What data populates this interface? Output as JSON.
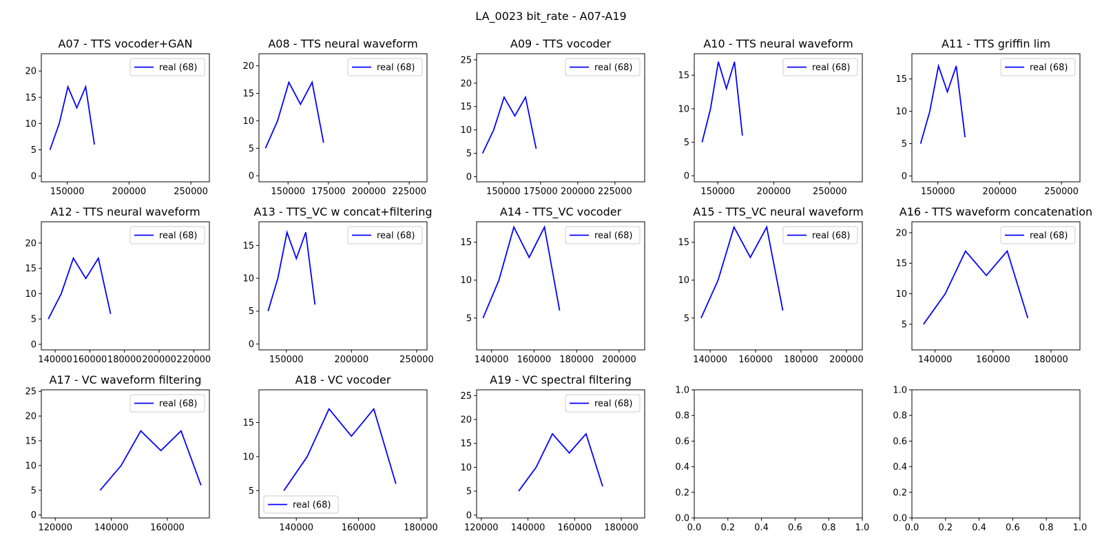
{
  "figure_title": "LA_0023 bit_rate - A07-A19",
  "chart_data": [
    {
      "type": "line",
      "title": "A07 - TTS vocoder+GAN",
      "x": [
        136000,
        143500,
        150500,
        157700,
        164900,
        172000
      ],
      "y": [
        5,
        10,
        17,
        13,
        17,
        6
      ],
      "series": [
        {
          "name": "real (68)",
          "color": "#0000ff"
        }
      ],
      "xlim": [
        129000,
        265000
      ],
      "ylim": [
        -1.1,
        23.3
      ],
      "xticks": [
        150000,
        200000,
        250000
      ],
      "xtick_labels": [
        "150000",
        "200000",
        "250000"
      ],
      "yticks": [
        0,
        5,
        10,
        15,
        20
      ],
      "ytick_labels": [
        "0",
        "5",
        "10",
        "15",
        "20"
      ],
      "legend": "upper right"
    },
    {
      "type": "line",
      "title": "A08 - TTS neural waveform",
      "x": [
        136000,
        143500,
        150500,
        157700,
        164900,
        172000
      ],
      "y": [
        5,
        10,
        17,
        13,
        17,
        6
      ],
      "series": [
        {
          "name": "real (68)",
          "color": "#0000ff"
        }
      ],
      "xlim": [
        132000,
        236000
      ],
      "ylim": [
        -1.1,
        22.2
      ],
      "xticks": [
        150000,
        175000,
        200000,
        225000
      ],
      "xtick_labels": [
        "150000",
        "175000",
        "200000",
        "225000"
      ],
      "yticks": [
        0,
        5,
        10,
        15,
        20
      ],
      "ytick_labels": [
        "0",
        "5",
        "10",
        "15",
        "20"
      ],
      "legend": "upper right"
    },
    {
      "type": "line",
      "title": "A09 - TTS vocoder",
      "x": [
        136000,
        143500,
        150500,
        157700,
        164900,
        172000
      ],
      "y": [
        5,
        10,
        17,
        13,
        17,
        6
      ],
      "series": [
        {
          "name": "real (68)",
          "color": "#0000ff"
        }
      ],
      "xlim": [
        132000,
        245000
      ],
      "ylim": [
        -1.1,
        26.3
      ],
      "xticks": [
        150000,
        175000,
        200000,
        225000
      ],
      "xtick_labels": [
        "150000",
        "175000",
        "200000",
        "225000"
      ],
      "yticks": [
        0,
        5,
        10,
        15,
        20,
        25
      ],
      "ytick_labels": [
        "0",
        "5",
        "10",
        "15",
        "20",
        "25"
      ],
      "legend": "upper right"
    },
    {
      "type": "line",
      "title": "A10 - TTS neural waveform",
      "x": [
        136000,
        143500,
        150500,
        157700,
        164900,
        172000
      ],
      "y": [
        5,
        10,
        17,
        13,
        17,
        6
      ],
      "series": [
        {
          "name": "real (68)",
          "color": "#0000ff"
        }
      ],
      "xlim": [
        129000,
        279000
      ],
      "ylim": [
        -0.9,
        18.2
      ],
      "xticks": [
        150000,
        200000,
        250000
      ],
      "xtick_labels": [
        "150000",
        "200000",
        "250000"
      ],
      "yticks": [
        0,
        5,
        10,
        15
      ],
      "ytick_labels": [
        "0",
        "5",
        "10",
        "15"
      ],
      "legend": "upper right"
    },
    {
      "type": "line",
      "title": "A11 - TTS griffin lim",
      "x": [
        136000,
        143500,
        150500,
        157700,
        164900,
        172000
      ],
      "y": [
        5,
        10,
        17,
        13,
        17,
        6
      ],
      "series": [
        {
          "name": "real (68)",
          "color": "#0000ff"
        }
      ],
      "xlim": [
        129000,
        265000
      ],
      "ylim": [
        -0.9,
        18.9
      ],
      "xticks": [
        150000,
        200000,
        250000
      ],
      "xtick_labels": [
        "150000",
        "200000",
        "250000"
      ],
      "yticks": [
        0,
        5,
        10,
        15
      ],
      "ytick_labels": [
        "0",
        "5",
        "10",
        "15"
      ],
      "legend": "upper right"
    },
    {
      "type": "line",
      "title": "A12 - TTS neural waveform",
      "x": [
        136000,
        143500,
        150500,
        157700,
        164900,
        172000
      ],
      "y": [
        5,
        10,
        17,
        13,
        17,
        6
      ],
      "series": [
        {
          "name": "real (68)",
          "color": "#0000ff"
        }
      ],
      "xlim": [
        132000,
        229000
      ],
      "ylim": [
        -1.1,
        24.2
      ],
      "xticks": [
        140000,
        160000,
        180000,
        200000,
        220000
      ],
      "xtick_labels": [
        "140000",
        "160000",
        "180000",
        "200000",
        "220000"
      ],
      "yticks": [
        0,
        5,
        10,
        15,
        20
      ],
      "ytick_labels": [
        "0",
        "5",
        "10",
        "15",
        "20"
      ],
      "legend": "upper right"
    },
    {
      "type": "line",
      "title": "A13 - TTS_VC w concat+filtering",
      "x": [
        136000,
        143500,
        150500,
        157700,
        164900,
        172000
      ],
      "y": [
        5,
        10,
        17,
        13,
        17,
        6
      ],
      "series": [
        {
          "name": "real (68)",
          "color": "#0000ff"
        }
      ],
      "xlim": [
        129000,
        258000
      ],
      "ylim": [
        -0.9,
        18.6
      ],
      "xticks": [
        150000,
        200000,
        250000
      ],
      "xtick_labels": [
        "150000",
        "200000",
        "250000"
      ],
      "yticks": [
        0,
        5,
        10,
        15
      ],
      "ytick_labels": [
        "0",
        "5",
        "10",
        "15"
      ],
      "legend": "upper right"
    },
    {
      "type": "line",
      "title": "A14 - TTS_VC vocoder",
      "x": [
        136000,
        143500,
        150500,
        157700,
        164900,
        172000
      ],
      "y": [
        5,
        10,
        17,
        13,
        17,
        6
      ],
      "series": [
        {
          "name": "real (68)",
          "color": "#0000ff"
        }
      ],
      "xlim": [
        133000,
        212000
      ],
      "ylim": [
        0.8,
        17.7
      ],
      "xticks": [
        140000,
        160000,
        180000,
        200000
      ],
      "xtick_labels": [
        "140000",
        "160000",
        "180000",
        "200000"
      ],
      "yticks": [
        5,
        10,
        15
      ],
      "ytick_labels": [
        "5",
        "10",
        "15"
      ],
      "legend": "upper right"
    },
    {
      "type": "line",
      "title": "A15 - TTS_VC neural waveform",
      "x": [
        136000,
        143500,
        150500,
        157700,
        164900,
        172000
      ],
      "y": [
        5,
        10,
        17,
        13,
        17,
        6
      ],
      "series": [
        {
          "name": "real (68)",
          "color": "#0000ff"
        }
      ],
      "xlim": [
        133000,
        207000
      ],
      "ylim": [
        0.8,
        17.7
      ],
      "xticks": [
        140000,
        160000,
        180000,
        200000
      ],
      "xtick_labels": [
        "140000",
        "160000",
        "180000",
        "200000"
      ],
      "yticks": [
        5,
        10,
        15
      ],
      "ytick_labels": [
        "5",
        "10",
        "15"
      ],
      "legend": "upper right"
    },
    {
      "type": "line",
      "title": "A16 - TTS waveform concatenation",
      "x": [
        136000,
        143500,
        150500,
        157700,
        164900,
        172000
      ],
      "y": [
        5,
        10,
        17,
        13,
        17,
        6
      ],
      "series": [
        {
          "name": "real (68)",
          "color": "#0000ff"
        }
      ],
      "xlim": [
        132000,
        190000
      ],
      "ylim": [
        0.8,
        21.8
      ],
      "xticks": [
        140000,
        160000,
        180000
      ],
      "xtick_labels": [
        "140000",
        "160000",
        "180000"
      ],
      "yticks": [
        5,
        10,
        15,
        20
      ],
      "ytick_labels": [
        "5",
        "10",
        "15",
        "20"
      ],
      "legend": "upper right"
    },
    {
      "type": "line",
      "title": "A17 - VC waveform filtering",
      "x": [
        136000,
        143500,
        150500,
        157700,
        164900,
        172000
      ],
      "y": [
        5,
        10,
        17,
        13,
        17,
        6
      ],
      "series": [
        {
          "name": "real (68)",
          "color": "#0000ff"
        }
      ],
      "xlim": [
        115000,
        175000
      ],
      "ylim": [
        -0.6,
        25.3
      ],
      "xticks": [
        120000,
        140000,
        160000
      ],
      "xtick_labels": [
        "120000",
        "140000",
        "160000"
      ],
      "yticks": [
        0,
        5,
        10,
        15,
        20,
        25
      ],
      "ytick_labels": [
        "0",
        "5",
        "10",
        "15",
        "20",
        "25"
      ],
      "legend": "upper right"
    },
    {
      "type": "line",
      "title": "A18 - VC vocoder",
      "x": [
        136000,
        143500,
        150500,
        157700,
        164900,
        172000
      ],
      "y": [
        5,
        10,
        17,
        13,
        17,
        6
      ],
      "series": [
        {
          "name": "real (68)",
          "color": "#0000ff"
        }
      ],
      "xlim": [
        128000,
        182000
      ],
      "ylim": [
        1.0,
        19.8
      ],
      "xticks": [
        140000,
        160000,
        180000
      ],
      "xtick_labels": [
        "140000",
        "160000",
        "180000"
      ],
      "yticks": [
        5,
        10,
        15
      ],
      "ytick_labels": [
        "5",
        "10",
        "15"
      ],
      "legend": "lower left"
    },
    {
      "type": "line",
      "title": "A19 - VC spectral filtering",
      "x": [
        136000,
        143500,
        150500,
        157700,
        164900,
        172000
      ],
      "y": [
        5,
        10,
        17,
        13,
        17,
        6
      ],
      "series": [
        {
          "name": "real (68)",
          "color": "#0000ff"
        }
      ],
      "xlim": [
        118000,
        190000
      ],
      "ylim": [
        -0.6,
        26.2
      ],
      "xticks": [
        120000,
        140000,
        160000,
        180000
      ],
      "xtick_labels": [
        "120000",
        "140000",
        "160000",
        "180000"
      ],
      "yticks": [
        0,
        5,
        10,
        15,
        20,
        25
      ],
      "ytick_labels": [
        "0",
        "5",
        "10",
        "15",
        "20",
        "25"
      ],
      "legend": "upper right"
    },
    {
      "type": "line",
      "title": "",
      "x": [],
      "y": [],
      "series": [],
      "xlim": [
        0,
        1
      ],
      "ylim": [
        0,
        1
      ],
      "xticks": [
        0,
        0.2,
        0.4,
        0.6,
        0.8,
        1
      ],
      "xtick_labels": [
        "0.0",
        "0.2",
        "0.4",
        "0.6",
        "0.8",
        "1.0"
      ],
      "yticks": [
        0,
        0.2,
        0.4,
        0.6,
        0.8,
        1
      ],
      "ytick_labels": [
        "0.0",
        "0.2",
        "0.4",
        "0.6",
        "0.8",
        "1.0"
      ],
      "legend": ""
    },
    {
      "type": "line",
      "title": "",
      "x": [],
      "y": [],
      "series": [],
      "xlim": [
        0,
        1
      ],
      "ylim": [
        0,
        1
      ],
      "xticks": [
        0,
        0.2,
        0.4,
        0.6,
        0.8,
        1
      ],
      "xtick_labels": [
        "0.0",
        "0.2",
        "0.4",
        "0.6",
        "0.8",
        "1.0"
      ],
      "yticks": [
        0,
        0.2,
        0.4,
        0.6,
        0.8,
        1
      ],
      "ytick_labels": [
        "0.0",
        "0.2",
        "0.4",
        "0.6",
        "0.8",
        "1.0"
      ],
      "legend": ""
    }
  ]
}
